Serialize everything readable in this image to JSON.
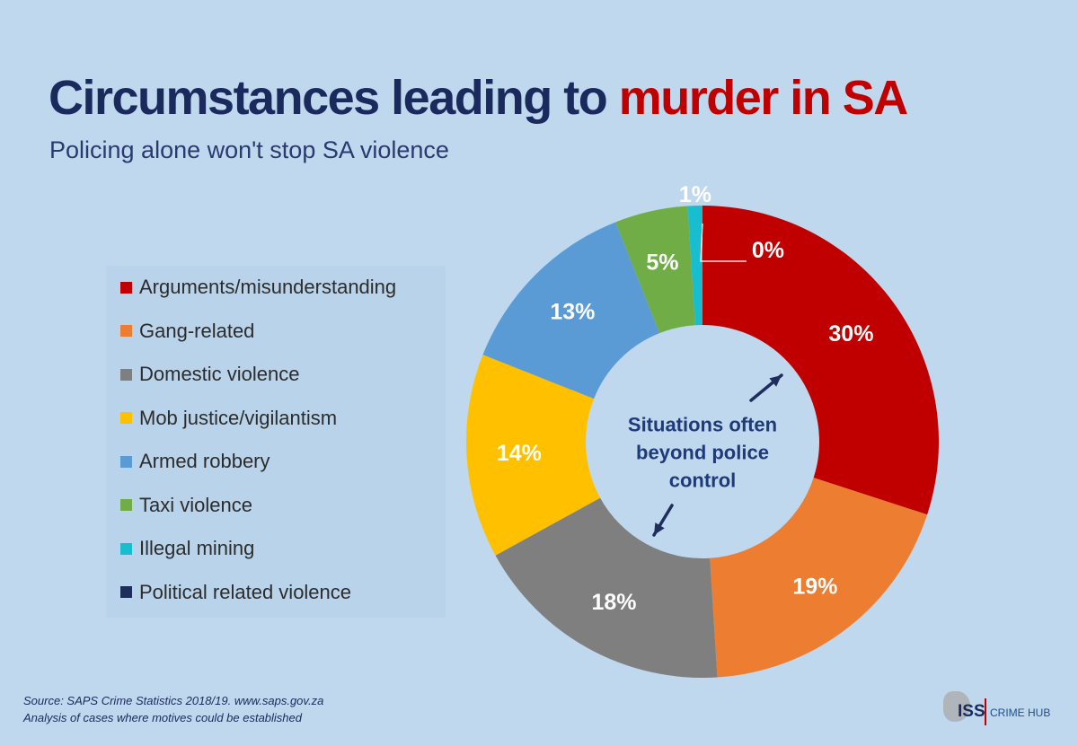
{
  "header": {
    "title_main": "Circumstances leading to ",
    "title_highlight": "murder in SA",
    "subtitle": "Policing alone won't stop SA violence"
  },
  "chart_data": {
    "type": "pie",
    "title": "Circumstances leading to murder in SA",
    "subtitle": "Policing alone won't stop SA violence",
    "donut": true,
    "legend_position": "left",
    "start_angle": "12 o'clock",
    "direction": "clockwise",
    "slices": [
      {
        "name": "Arguments/misunderstanding",
        "value": 30,
        "label": "30%",
        "color": "#c00000"
      },
      {
        "name": "Gang-related",
        "value": 19,
        "label": "19%",
        "color": "#ed7d31"
      },
      {
        "name": "Domestic violence",
        "value": 18,
        "label": "18%",
        "color": "#7f7f7f"
      },
      {
        "name": "Mob justice/vigilantism",
        "value": 14,
        "label": "14%",
        "color": "#ffc000"
      },
      {
        "name": "Armed robbery",
        "value": 13,
        "label": "13%",
        "color": "#5b9bd5"
      },
      {
        "name": "Taxi violence",
        "value": 5,
        "label": "5%",
        "color": "#70ad47"
      },
      {
        "name": "Illegal mining",
        "value": 1,
        "label": "1%",
        "color": "#17becf"
      },
      {
        "name": "Political related violence",
        "value": 0,
        "label": "0%",
        "color": "#1f2d5c"
      }
    ],
    "center_annotation": [
      "Situations often",
      "beyond police",
      "control"
    ]
  },
  "colors": {
    "background": "#bfd8ee",
    "title": "#1b2a5c",
    "title_highlight": "#c00000"
  },
  "footer": {
    "source_line1": "Source: SAPS Crime Statistics 2018/19. www.saps.gov.za",
    "source_line2": "Analysis of cases where motives could be established"
  },
  "logo": {
    "org": "ISS",
    "product": "CRIME HUB"
  }
}
